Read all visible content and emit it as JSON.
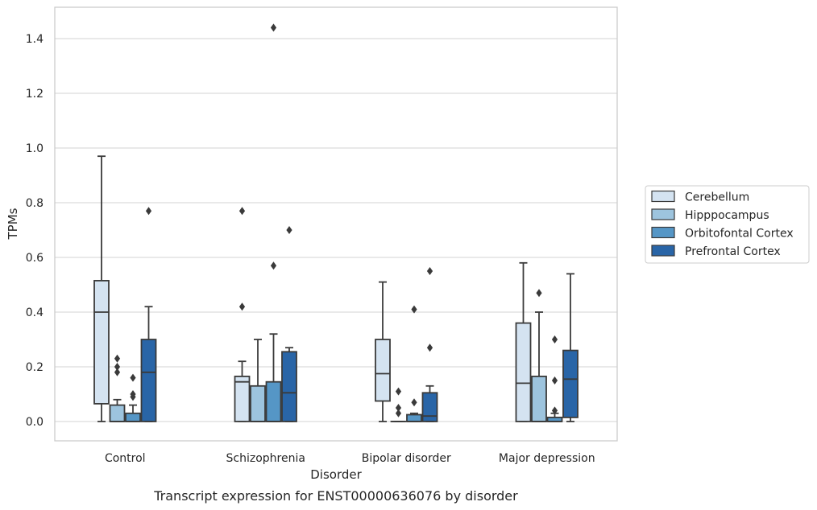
{
  "chart_data": {
    "type": "box",
    "caption": "Transcript expression for ENST00000636076 by disorder",
    "xlabel": "Disorder",
    "ylabel": "TPMs",
    "ylim": [
      -0.07,
      1.52
    ],
    "yticks": [
      "0.0",
      "0.2",
      "0.4",
      "0.6",
      "0.8",
      "1.0",
      "1.2",
      "1.4"
    ],
    "grid": "horizontal",
    "legend_position": "right",
    "categories": [
      "Control",
      "Schizophrenia",
      "Bipolar disorder",
      "Major depression"
    ],
    "series": [
      {
        "name": "Cerebellum",
        "color": "#d4e3f1",
        "boxes": [
          {
            "whislo": 0.0,
            "q1": 0.065,
            "med": 0.4,
            "q3": 0.515,
            "whishi": 0.97,
            "fliers": []
          },
          {
            "whislo": 0.0,
            "q1": 0.0,
            "med": 0.145,
            "q3": 0.165,
            "whishi": 0.22,
            "fliers": [
              0.42,
              0.77
            ]
          },
          {
            "whislo": 0.0,
            "q1": 0.075,
            "med": 0.175,
            "q3": 0.3,
            "whishi": 0.51,
            "fliers": []
          },
          {
            "whislo": 0.0,
            "q1": 0.0,
            "med": 0.14,
            "q3": 0.36,
            "whishi": 0.58,
            "fliers": []
          }
        ]
      },
      {
        "name": "Hipppocampus",
        "color": "#9dc4de",
        "boxes": [
          {
            "whislo": 0.0,
            "q1": 0.0,
            "med": 0.0,
            "q3": 0.06,
            "whishi": 0.08,
            "fliers": [
              0.18,
              0.2,
              0.23
            ]
          },
          {
            "whislo": 0.0,
            "q1": 0.0,
            "med": 0.0,
            "q3": 0.13,
            "whishi": 0.3,
            "fliers": []
          },
          {
            "whislo": 0.0,
            "q1": 0.0,
            "med": 0.0,
            "q3": 0.0,
            "whishi": 0.0,
            "fliers": [
              0.03,
              0.05,
              0.11
            ]
          },
          {
            "whislo": 0.0,
            "q1": 0.0,
            "med": 0.0,
            "q3": 0.165,
            "whishi": 0.4,
            "fliers": [
              0.47
            ]
          }
        ]
      },
      {
        "name": "Orbitofontal Cortex",
        "color": "#5596c6",
        "boxes": [
          {
            "whislo": 0.0,
            "q1": 0.0,
            "med": 0.0,
            "q3": 0.03,
            "whishi": 0.06,
            "fliers": [
              0.09,
              0.1,
              0.16
            ]
          },
          {
            "whislo": 0.0,
            "q1": 0.0,
            "med": 0.0,
            "q3": 0.145,
            "whishi": 0.32,
            "fliers": [
              0.57,
              1.44
            ]
          },
          {
            "whislo": 0.0,
            "q1": 0.0,
            "med": 0.0,
            "q3": 0.025,
            "whishi": 0.03,
            "fliers": [
              0.07,
              0.41
            ]
          },
          {
            "whislo": 0.0,
            "q1": 0.0,
            "med": 0.0,
            "q3": 0.015,
            "whishi": 0.03,
            "fliers": [
              0.04,
              0.15,
              0.3
            ]
          }
        ]
      },
      {
        "name": "Prefrontal Cortex",
        "color": "#2965a7",
        "boxes": [
          {
            "whislo": 0.0,
            "q1": 0.0,
            "med": 0.18,
            "q3": 0.3,
            "whishi": 0.42,
            "fliers": [
              0.77
            ]
          },
          {
            "whislo": 0.0,
            "q1": 0.0,
            "med": 0.105,
            "q3": 0.255,
            "whishi": 0.27,
            "fliers": [
              0.7
            ]
          },
          {
            "whislo": 0.0,
            "q1": 0.0,
            "med": 0.02,
            "q3": 0.105,
            "whishi": 0.13,
            "fliers": [
              0.27,
              0.55
            ]
          },
          {
            "whislo": 0.0,
            "q1": 0.015,
            "med": 0.155,
            "q3": 0.26,
            "whishi": 0.54,
            "fliers": []
          }
        ]
      }
    ]
  }
}
